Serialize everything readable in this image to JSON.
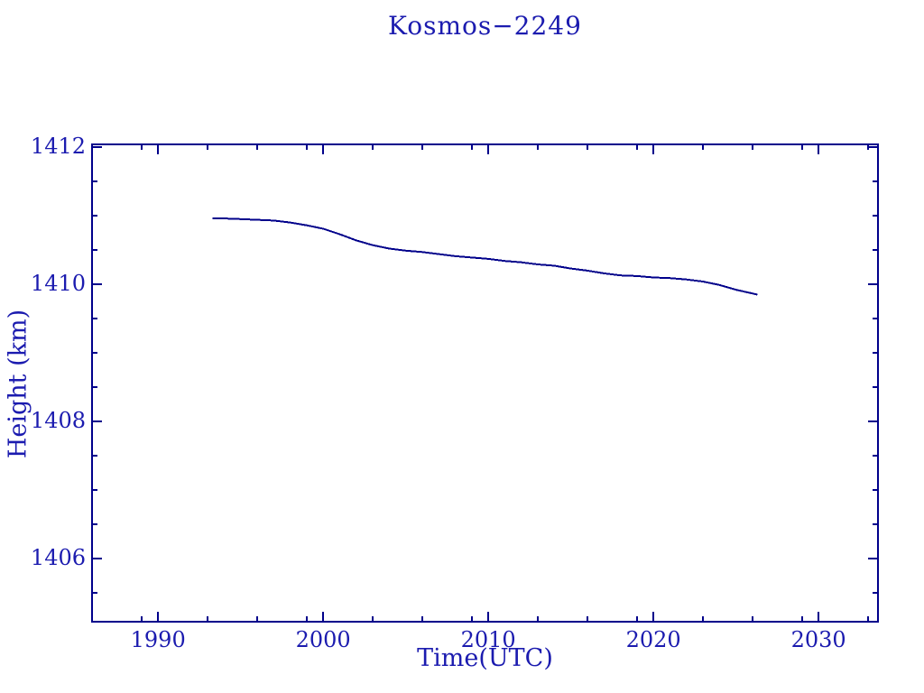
{
  "page": {
    "background_color": "#ffffff",
    "accent_color": "#1b1baf"
  },
  "chart_data": {
    "type": "line",
    "title": "Kosmos−2249",
    "xlabel": "Time(UTC)",
    "ylabel": "Height (km)",
    "grid": false,
    "legend": null,
    "xlim": [
      1986.0,
      2033.6
    ],
    "ylim": [
      1405.08,
      1412.04
    ],
    "x_major_ticks": [
      1990,
      2000,
      2010,
      2020,
      2030
    ],
    "x_tick_labels": [
      "1990",
      "2000",
      "2010",
      "2020",
      "2030"
    ],
    "x_minor_ticks": [
      1989,
      1993,
      1996,
      1999,
      2003,
      2006,
      2009,
      2013,
      2016,
      2019,
      2023,
      2026,
      2029,
      2033
    ],
    "y_major_ticks": [
      1406,
      1408,
      1410,
      1412
    ],
    "y_tick_labels": [
      "1406",
      "1408",
      "1410",
      "1412"
    ],
    "y_minor_ticks": [
      1405.5,
      1406.5,
      1407,
      1407.5,
      1408.5,
      1409,
      1409.5,
      1410.5,
      1411,
      1411.5
    ],
    "colors": {
      "line": "#00008b",
      "axis": "#00008b",
      "text": "#1b1baf"
    },
    "series": [
      {
        "name": "Kosmos−2249",
        "x": [
          1993.3,
          1994,
          1995,
          1996,
          1997,
          1998,
          1999,
          2000,
          2001,
          2002,
          2003,
          2004,
          2005,
          2006,
          2007,
          2008,
          2009,
          2010,
          2011,
          2012,
          2013,
          2014,
          2015,
          2016,
          2017,
          2018,
          2019,
          2020,
          2021,
          2022,
          2023,
          2024,
          2025,
          2026.3
        ],
        "y": [
          1410.96,
          1410.96,
          1410.95,
          1410.94,
          1410.93,
          1410.9,
          1410.86,
          1410.81,
          1410.73,
          1410.64,
          1410.57,
          1410.52,
          1410.49,
          1410.47,
          1410.44,
          1410.41,
          1410.39,
          1410.37,
          1410.34,
          1410.32,
          1410.29,
          1410.27,
          1410.23,
          1410.2,
          1410.16,
          1410.13,
          1410.12,
          1410.1,
          1410.09,
          1410.07,
          1410.04,
          1409.99,
          1409.92,
          1409.85
        ]
      }
    ]
  }
}
